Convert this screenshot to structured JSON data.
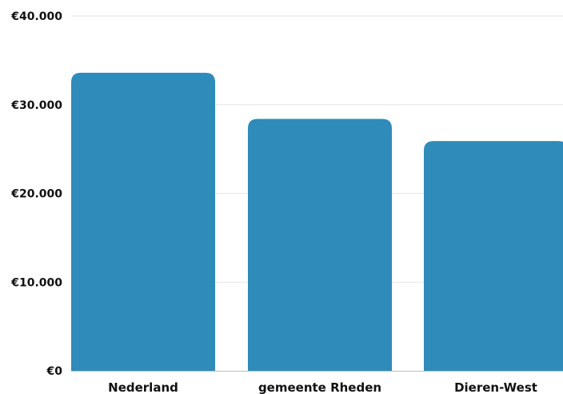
{
  "chart_data": {
    "type": "bar",
    "categories": [
      "Nederland",
      "gemeente Rheden",
      "Dieren-West"
    ],
    "values": [
      33600,
      28400,
      25900
    ],
    "title": "",
    "xlabel": "",
    "ylabel": "",
    "ylim": [
      0,
      40000
    ],
    "yticks": [
      {
        "value": 0,
        "label": "€0"
      },
      {
        "value": 10000,
        "label": "€10.000"
      },
      {
        "value": 20000,
        "label": "€20.000"
      },
      {
        "value": 30000,
        "label": "€30.000"
      },
      {
        "value": 40000,
        "label": "€40.000"
      }
    ],
    "grid": true,
    "legend": "none",
    "colors": {
      "bar": "#2e8bba",
      "grid": "#e6e6e6",
      "axis": "#bdbdbd",
      "text": "#111111"
    }
  }
}
